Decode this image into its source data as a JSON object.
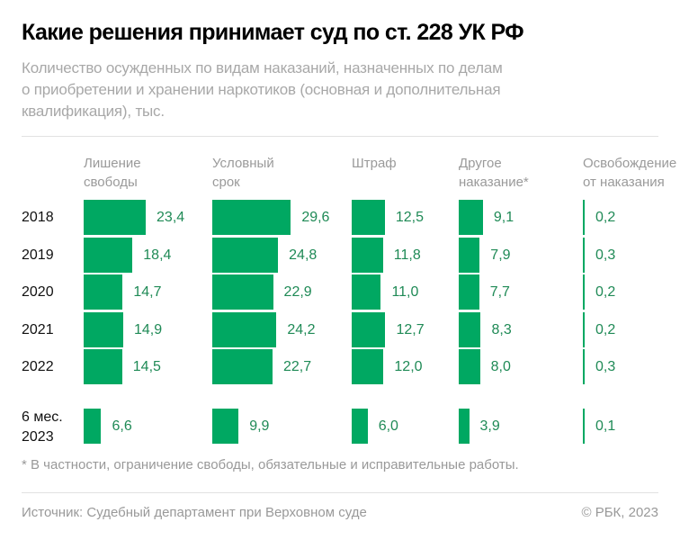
{
  "chart_data": {
    "type": "bar",
    "title": "Какие решения принимает суд по ст. 228 УК РФ",
    "subtitle_lines": [
      "Количество осужденных по видам наказаний, назначенных по делам",
      "о приобретении и хранении наркотиков (основная и дополнительная",
      "квалификация), тыс."
    ],
    "orientation": "horizontal",
    "categories": [
      "2018",
      "2019",
      "2020",
      "2021",
      "2022",
      "6 мес. 2023"
    ],
    "series": [
      {
        "name": "Лишение свободы",
        "name_lines": [
          "Лишение",
          "свободы"
        ],
        "values": [
          "23,4",
          "18,4",
          "14,7",
          "14,9",
          "14,5",
          "6,6"
        ]
      },
      {
        "name": "Условный срок",
        "name_lines": [
          "Условный",
          "срок"
        ],
        "values": [
          "29,6",
          "24,8",
          "22,9",
          "24,2",
          "22,7",
          "9,9"
        ]
      },
      {
        "name": "Штраф",
        "name_lines": [
          "Штраф",
          ""
        ],
        "values": [
          "12,5",
          "11,8",
          "11,0",
          "12,7",
          "12,0",
          "6,0"
        ]
      },
      {
        "name": "Другое наказание*",
        "name_lines": [
          "Другое",
          "наказание*"
        ],
        "values": [
          "9,1",
          "7,9",
          "7,7",
          "8,3",
          "8,0",
          "3,9"
        ]
      },
      {
        "name": "Освобождение от наказания",
        "name_lines": [
          "Освобождение",
          "от наказания"
        ],
        "values": [
          "0,2",
          "0,3",
          "0,2",
          "0,2",
          "0,3",
          "0,1"
        ]
      }
    ],
    "category_lines": [
      [
        "2018"
      ],
      [
        "2019"
      ],
      [
        "2020"
      ],
      [
        "2021"
      ],
      [
        "2022"
      ],
      [
        "6 мес.",
        "2023"
      ]
    ],
    "grid": false,
    "bar_color": "#00a862",
    "value_label_color": "#1f8a56"
  },
  "footnote": "* В частности, ограничение свободы, обязательные и исправительные работы.",
  "source": "Источник: Судебный департамент при Верховном суде",
  "copyright": "© РБК, 2023"
}
